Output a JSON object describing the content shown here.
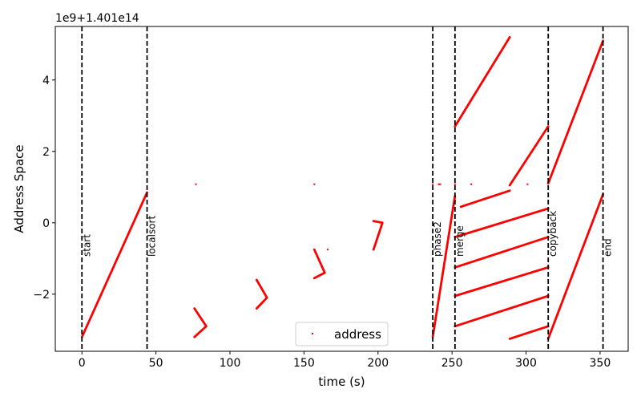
{
  "chart_data": {
    "type": "scatter",
    "title": "",
    "xlabel": "time (s)",
    "ylabel": "Address Space",
    "xlim": [
      -18,
      369
    ],
    "ylim": [
      -3.6,
      5.5
    ],
    "xticks": [
      0,
      50,
      100,
      150,
      200,
      250,
      300,
      350
    ],
    "yticks": [
      -2,
      0,
      2,
      4
    ],
    "xtick_labels": [
      "0",
      "50",
      "100",
      "150",
      "200",
      "250",
      "300",
      "350"
    ],
    "ytick_labels": [
      "−2",
      "0",
      "2",
      "4"
    ],
    "y_offset_label": "1e9+1.401e14",
    "grid": false,
    "legend": {
      "position": "lower-center",
      "entries": [
        "address"
      ]
    },
    "series": [
      {
        "name": "address",
        "color": "#ff0000",
        "marker": "point",
        "segments": [
          [
            [
              0,
              -3.2
            ],
            [
              44,
              0.85
            ]
          ],
          [
            [
              76,
              -2.4
            ],
            [
              84,
              -2.9
            ],
            [
              76,
              -3.2
            ]
          ],
          [
            [
              118,
              -1.6
            ],
            [
              125,
              -2.1
            ],
            [
              118,
              -2.4
            ]
          ],
          [
            [
              157,
              -0.75
            ],
            [
              164,
              -1.4
            ],
            [
              157,
              -1.55
            ]
          ],
          [
            [
              197,
              0.05
            ],
            [
              203,
              0.0
            ],
            [
              197,
              -0.75
            ]
          ],
          [
            [
              237,
              -3.2
            ],
            [
              252,
              0.75
            ]
          ],
          [
            [
              252,
              2.7
            ],
            [
              289,
              5.2
            ]
          ],
          [
            [
              256,
              0.45
            ],
            [
              289,
              0.9
            ]
          ],
          [
            [
              289,
              1.05
            ],
            [
              315,
              2.7
            ]
          ],
          [
            [
              252,
              -0.4
            ],
            [
              315,
              0.4
            ]
          ],
          [
            [
              252,
              -1.25
            ],
            [
              315,
              -0.4
            ]
          ],
          [
            [
              252,
              -2.05
            ],
            [
              315,
              -1.25
            ]
          ],
          [
            [
              252,
              -2.9
            ],
            [
              315,
              -2.05
            ]
          ],
          [
            [
              289,
              -3.25
            ],
            [
              315,
              -2.9
            ]
          ],
          [
            [
              315,
              1.1
            ],
            [
              352,
              5.1
            ]
          ],
          [
            [
              315,
              -3.25
            ],
            [
              352,
              0.8
            ]
          ]
        ],
        "points": [
          [
            77,
            1.08
          ],
          [
            157,
            1.08
          ],
          [
            166,
            -0.75
          ],
          [
            241,
            1.08
          ],
          [
            242,
            1.08
          ],
          [
            263,
            1.08
          ],
          [
            301,
            1.08
          ],
          [
            237,
            1.08
          ],
          [
            252,
            1.08
          ]
        ]
      }
    ],
    "phase_markers": [
      {
        "x": 0,
        "label": "start"
      },
      {
        "x": 44,
        "label": "localsort"
      },
      {
        "x": 237,
        "label": "phase2"
      },
      {
        "x": 252,
        "label": "merge"
      },
      {
        "x": 315,
        "label": "copyback"
      },
      {
        "x": 352,
        "label": "end"
      }
    ]
  }
}
